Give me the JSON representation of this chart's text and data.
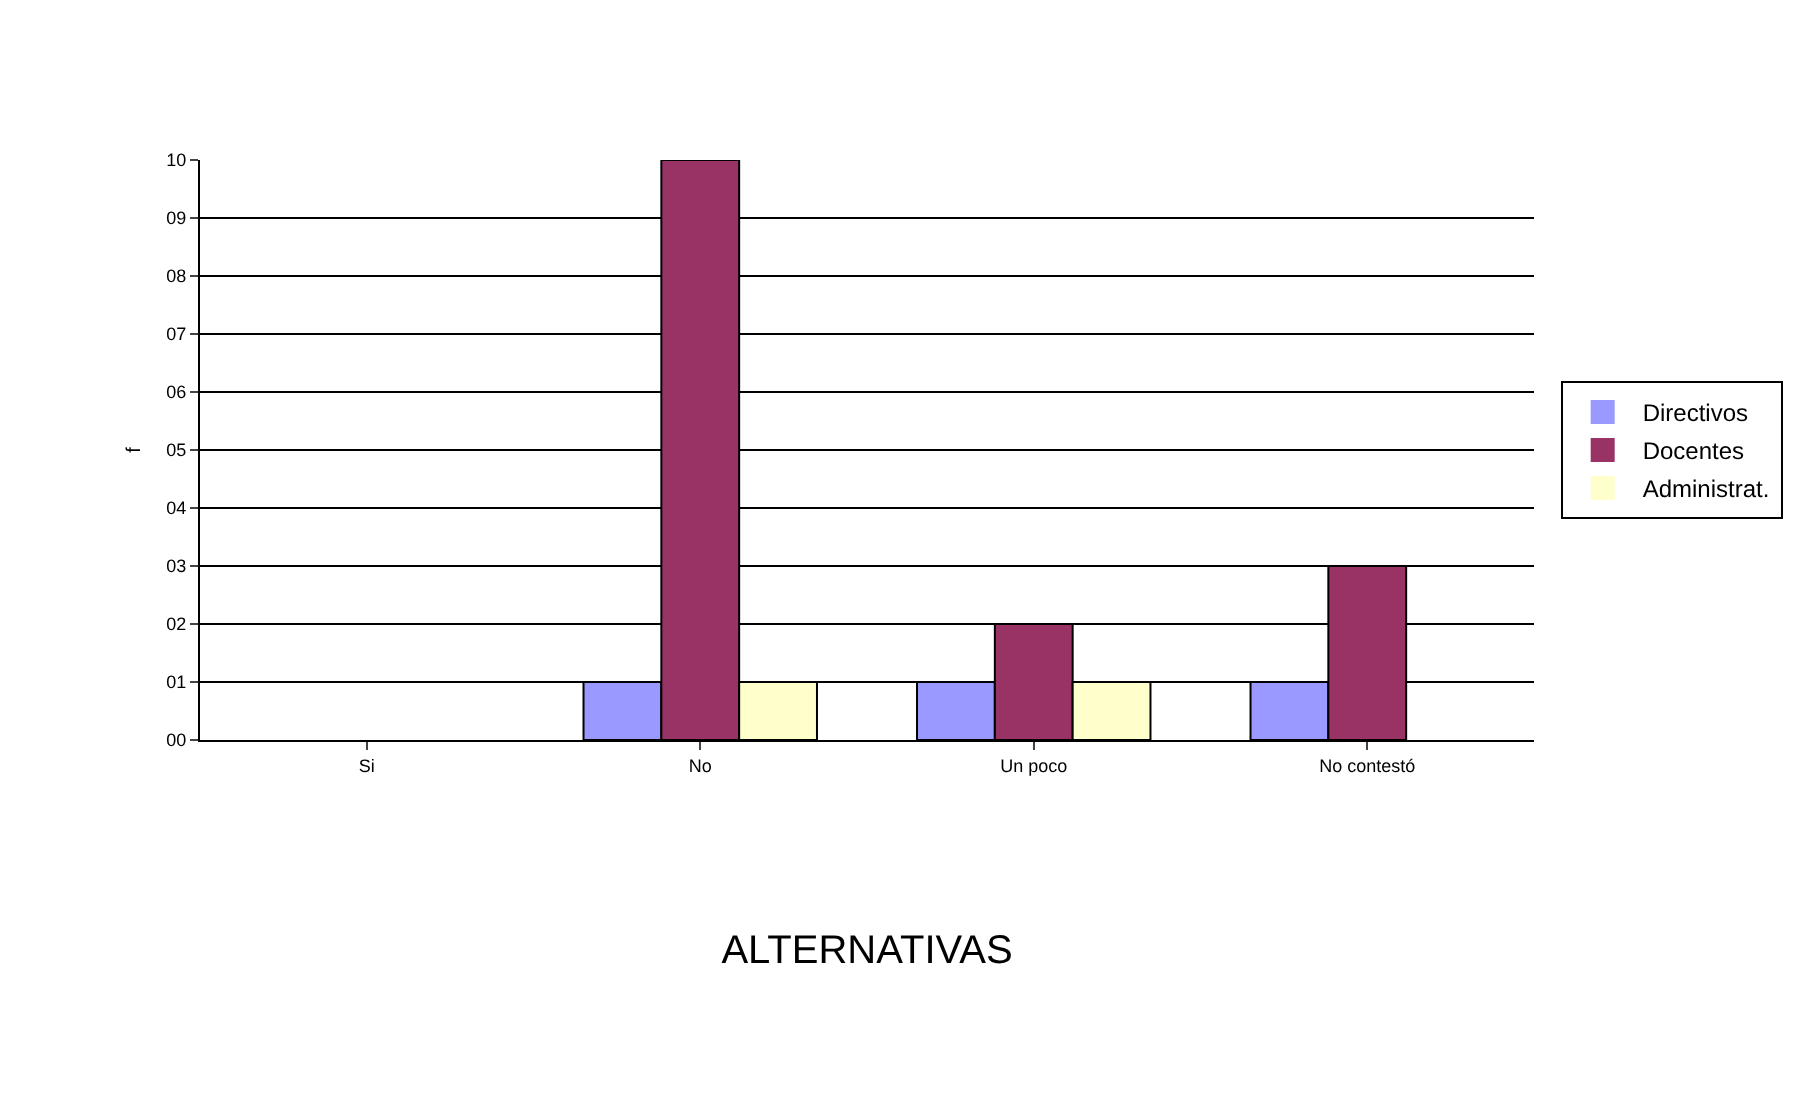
{
  "chart_data": {
    "type": "bar",
    "xlabel": "ALTERNATIVAS",
    "ylabel": "f",
    "categories": [
      "Si",
      "No",
      "Un poco",
      "No contestó"
    ],
    "series": [
      {
        "name": "Directivos",
        "color": "#9999ff",
        "values": [
          0,
          1,
          1,
          1
        ]
      },
      {
        "name": "Docentes",
        "color": "#993366",
        "values": [
          0,
          10,
          2,
          3
        ]
      },
      {
        "name": "Administrat.",
        "color": "#ffffcc",
        "values": [
          0,
          1,
          1,
          0
        ]
      }
    ],
    "ylim": [
      0,
      10
    ],
    "yticks": [
      {
        "value": 0,
        "label": "00"
      },
      {
        "value": 1,
        "label": "01"
      },
      {
        "value": 2,
        "label": "02"
      },
      {
        "value": 3,
        "label": "03"
      },
      {
        "value": 4,
        "label": "04"
      },
      {
        "value": 5,
        "label": "05"
      },
      {
        "value": 6,
        "label": "06"
      },
      {
        "value": 7,
        "label": "07"
      },
      {
        "value": 8,
        "label": "08"
      },
      {
        "value": 9,
        "label": "09"
      },
      {
        "value": 10,
        "label": "10"
      }
    ],
    "grid": "y",
    "legend": "right"
  }
}
